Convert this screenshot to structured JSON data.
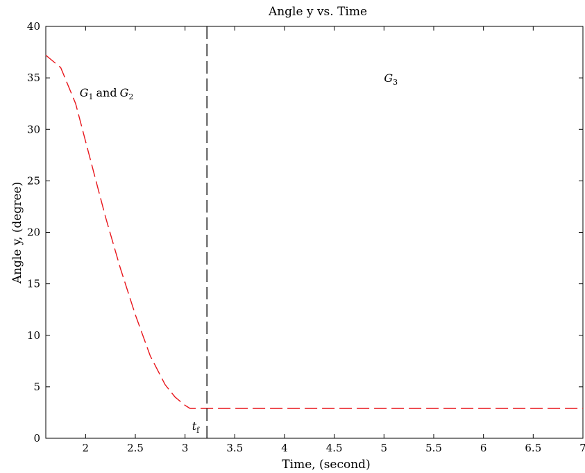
{
  "chart_data": {
    "type": "line",
    "title": "Angle y vs. Time",
    "xlabel": "Time, (second)",
    "ylabel": "Angle y, (degree)",
    "xlim": [
      1.6,
      7.0
    ],
    "ylim": [
      0,
      40
    ],
    "xticks": [
      2,
      2.5,
      3,
      3.5,
      4,
      4.5,
      5,
      5.5,
      6,
      6.5,
      7
    ],
    "xtick_labels": [
      "2",
      "2.5",
      "3",
      "3.5",
      "4",
      "4.5",
      "5",
      "5.5",
      "6",
      "6.5",
      "7"
    ],
    "yticks": [
      0,
      5,
      10,
      15,
      20,
      25,
      30,
      35,
      40
    ],
    "ytick_labels": [
      "0",
      "5",
      "10",
      "15",
      "20",
      "25",
      "30",
      "35",
      "40"
    ],
    "grid": false,
    "series": [
      {
        "color": "#e8151b",
        "style": "dashed",
        "x": [
          1.6,
          1.75,
          1.9,
          2.05,
          2.2,
          2.35,
          2.5,
          2.65,
          2.8,
          2.9,
          3.0,
          3.05,
          3.22,
          4.0,
          5.0,
          6.0,
          7.0
        ],
        "y": [
          37.2,
          36.0,
          32.5,
          27.0,
          21.5,
          16.5,
          12.0,
          8.0,
          5.2,
          4.0,
          3.2,
          2.9,
          2.9,
          2.9,
          2.9,
          2.9,
          2.9
        ]
      }
    ],
    "vline": {
      "x": 3.22,
      "color": "#000000",
      "style": "dashed"
    },
    "annotations": [
      {
        "id": "g1g2",
        "parts": [
          "G",
          "1",
          "and",
          "G",
          "2"
        ],
        "x": 1.94,
        "y": 33.2
      },
      {
        "id": "g3",
        "parts": [
          "G",
          "3"
        ],
        "x": 5.0,
        "y": 34.6
      },
      {
        "id": "tf",
        "parts": [
          "t",
          "f"
        ],
        "x": 3.07,
        "y": 0.8
      }
    ]
  }
}
